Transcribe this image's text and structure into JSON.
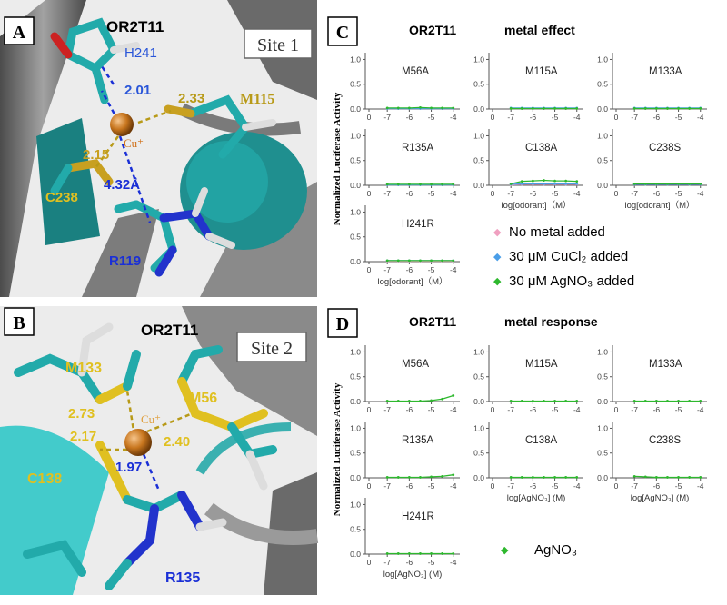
{
  "panels": {
    "A": {
      "letter": "A",
      "protein": "OR2T11",
      "site": "Site 1",
      "labels": {
        "h241": "H241",
        "m115": "M115",
        "c238": "C238",
        "r119": "R119",
        "cu": "Cu⁺"
      },
      "distances": {
        "h241": "2.01",
        "m115": "2.33",
        "c238": "2.15",
        "r119": "4.32Å"
      }
    },
    "B": {
      "letter": "B",
      "protein": "OR2T11",
      "site": "Site 2",
      "labels": {
        "m133": "M133",
        "m56": "M56",
        "c138": "C138",
        "r135": "R135",
        "cu": "Cu⁺"
      },
      "distances": {
        "m133": "2.73",
        "c138": "2.17",
        "m56": "2.40",
        "r135": "1.97"
      }
    },
    "C": {
      "letter": "C",
      "protein": "OR2T11",
      "subtitle": "metal effect",
      "ylabel": "Normalized Luciferase Activity",
      "xlabel": "log[odorant]（M）",
      "legend": [
        "No metal added",
        "30 μM CuCl₂  added",
        "30 μM AgNO₃  added"
      ]
    },
    "D": {
      "letter": "D",
      "protein": "OR2T11",
      "subtitle": "metal response",
      "ylabel": "Normalized Luciferase Activity",
      "xlabel": "log[AgNO₃] (M)",
      "legend": [
        "AgNO₃"
      ]
    }
  },
  "colors": {
    "none": "#f0a0c0",
    "cu": "#4a9ee8",
    "ag": "#2eb82e",
    "axis": "#555555",
    "teal": "#1f9e9e",
    "grey": "#7a7a7a",
    "gold": "#b89a18",
    "blue": "#1a2fd6"
  },
  "chart_data": [
    {
      "type": "line",
      "title": "OR2T11 metal effect",
      "ylabel": "Normalized Luciferase Activity",
      "xlabel": "log[odorant]（M）",
      "xticks": [
        "0",
        "-7",
        "-6",
        "-5",
        "-4"
      ],
      "yticks": [
        "0.0",
        "0.5",
        "1.0"
      ],
      "ylim": [
        0,
        1.1
      ],
      "xlim": [
        -8,
        -3.7
      ],
      "legend": [
        "No metal added",
        "30 μM CuCl₂  added",
        "30 μM AgNO₃  added"
      ],
      "subplots": [
        {
          "name": "M56A",
          "series": [
            {
              "name": "No metal added",
              "x": [
                -7,
                -6.5,
                -6,
                -5.5,
                -5,
                -4.5,
                -4
              ],
              "values": [
                0.01,
                0.01,
                0.01,
                0.01,
                0.01,
                0.01,
                0.01
              ]
            },
            {
              "name": "30 μM CuCl₂  added",
              "x": [
                -7,
                -6.5,
                -6,
                -5.5,
                -5,
                -4.5,
                -4
              ],
              "values": [
                0.01,
                0.01,
                0.01,
                0.01,
                0.01,
                0.01,
                0.01
              ]
            },
            {
              "name": "30 μM AgNO₃  added",
              "x": [
                -7,
                -6.5,
                -6,
                -5.5,
                -5,
                -4.5,
                -4
              ],
              "values": [
                0.02,
                0.02,
                0.02,
                0.03,
                0.02,
                0.02,
                0.02
              ]
            }
          ]
        },
        {
          "name": "M115A",
          "series": [
            {
              "name": "No metal added",
              "x": [
                -7,
                -6.5,
                -6,
                -5.5,
                -5,
                -4.5,
                -4
              ],
              "values": [
                0.01,
                0.01,
                0.01,
                0.01,
                0.01,
                0.01,
                0.01
              ]
            },
            {
              "name": "30 μM CuCl₂  added",
              "x": [
                -7,
                -6.5,
                -6,
                -5.5,
                -5,
                -4.5,
                -4
              ],
              "values": [
                0.02,
                0.02,
                0.02,
                0.02,
                0.02,
                0.02,
                0.02
              ]
            },
            {
              "name": "30 μM AgNO₃  added",
              "x": [
                -7,
                -6.5,
                -6,
                -5.5,
                -5,
                -4.5,
                -4
              ],
              "values": [
                0.01,
                0.01,
                0.01,
                0.01,
                0.01,
                0.01,
                0.01
              ]
            }
          ]
        },
        {
          "name": "M133A",
          "series": [
            {
              "name": "No metal added",
              "x": [
                -7,
                -6.5,
                -6,
                -5.5,
                -5,
                -4.5,
                -4
              ],
              "values": [
                0.01,
                0.01,
                0.01,
                0.01,
                0.01,
                0.01,
                0.01
              ]
            },
            {
              "name": "30 μM CuCl₂  added",
              "x": [
                -7,
                -6.5,
                -6,
                -5.5,
                -5,
                -4.5,
                -4
              ],
              "values": [
                0.02,
                0.02,
                0.02,
                0.02,
                0.02,
                0.02,
                0.02
              ]
            },
            {
              "name": "30 μM AgNO₃  added",
              "x": [
                -7,
                -6.5,
                -6,
                -5.5,
                -5,
                -4.5,
                -4
              ],
              "values": [
                0.01,
                0.01,
                0.01,
                0.01,
                0.01,
                0.01,
                0.01
              ]
            }
          ]
        },
        {
          "name": "R135A",
          "series": [
            {
              "name": "No metal added",
              "x": [
                -7,
                -6.5,
                -6,
                -5.5,
                -5,
                -4.5,
                -4
              ],
              "values": [
                0.01,
                0.01,
                0.01,
                0.01,
                0.01,
                0.01,
                0.01
              ]
            },
            {
              "name": "30 μM CuCl₂  added",
              "x": [
                -7,
                -6.5,
                -6,
                -5.5,
                -5,
                -4.5,
                -4
              ],
              "values": [
                0.01,
                0.01,
                0.01,
                0.01,
                0.01,
                0.01,
                0.01
              ]
            },
            {
              "name": "30 μM AgNO₃  added",
              "x": [
                -7,
                -6.5,
                -6,
                -5.5,
                -5,
                -4.5,
                -4
              ],
              "values": [
                0.02,
                0.02,
                0.02,
                0.02,
                0.02,
                0.02,
                0.02
              ]
            }
          ]
        },
        {
          "name": "C138A",
          "series": [
            {
              "name": "No metal added",
              "x": [
                -7,
                -6.5,
                -6,
                -5.5,
                -5,
                -4.5,
                -4
              ],
              "values": [
                0.01,
                0.02,
                0.02,
                0.02,
                0.02,
                0.02,
                0.02
              ]
            },
            {
              "name": "30 μM CuCl₂  added",
              "x": [
                -7,
                -6.5,
                -6,
                -5.5,
                -5,
                -4.5,
                -4
              ],
              "values": [
                0.02,
                0.03,
                0.03,
                0.03,
                0.03,
                0.03,
                0.03
              ]
            },
            {
              "name": "30 μM AgNO₃  added",
              "x": [
                -7,
                -6.5,
                -6,
                -5.5,
                -5,
                -4.5,
                -4
              ],
              "values": [
                0.03,
                0.08,
                0.09,
                0.1,
                0.09,
                0.09,
                0.08
              ]
            }
          ]
        },
        {
          "name": "C238S",
          "series": [
            {
              "name": "No metal added",
              "x": [
                -7,
                -6.5,
                -6,
                -5.5,
                -5,
                -4.5,
                -4
              ],
              "values": [
                0.02,
                0.02,
                0.02,
                0.03,
                0.02,
                0.02,
                0.02
              ]
            },
            {
              "name": "30 μM CuCl₂  added",
              "x": [
                -7,
                -6.5,
                -6,
                -5.5,
                -5,
                -4.5,
                -4
              ],
              "values": [
                0.02,
                0.02,
                0.02,
                0.02,
                0.02,
                0.02,
                0.02
              ]
            },
            {
              "name": "30 μM AgNO₃  added",
              "x": [
                -7,
                -6.5,
                -6,
                -5.5,
                -5,
                -4.5,
                -4
              ],
              "values": [
                0.03,
                0.03,
                0.03,
                0.03,
                0.03,
                0.03,
                0.03
              ]
            }
          ]
        },
        {
          "name": "H241R",
          "series": [
            {
              "name": "No metal added",
              "x": [
                -7,
                -6.5,
                -6,
                -5.5,
                -5,
                -4.5,
                -4
              ],
              "values": [
                0.01,
                0.01,
                0.01,
                0.01,
                0.01,
                0.01,
                0.01
              ]
            },
            {
              "name": "30 μM CuCl₂  added",
              "x": [
                -7,
                -6.5,
                -6,
                -5.5,
                -5,
                -4.5,
                -4
              ],
              "values": [
                0.02,
                0.02,
                0.02,
                0.02,
                0.02,
                0.02,
                0.02
              ]
            },
            {
              "name": "30 μM AgNO₃  added",
              "x": [
                -7,
                -6.5,
                -6,
                -5.5,
                -5,
                -4.5,
                -4
              ],
              "values": [
                0.02,
                0.02,
                0.02,
                0.02,
                0.02,
                0.02,
                0.02
              ]
            }
          ]
        }
      ]
    },
    {
      "type": "line",
      "title": "OR2T11 metal response",
      "ylabel": "Normalized Luciferase Activity",
      "xlabel": "log[AgNO₃] (M)",
      "xticks": [
        "0",
        "-7",
        "-6",
        "-5",
        "-4"
      ],
      "yticks": [
        "0.0",
        "0.5",
        "1.0"
      ],
      "ylim": [
        0,
        1.1
      ],
      "xlim": [
        -8,
        -3.7
      ],
      "legend": [
        "AgNO₃"
      ],
      "subplots": [
        {
          "name": "M56A",
          "series": [
            {
              "name": "AgNO₃",
              "x": [
                -7,
                -6.5,
                -6,
                -5.5,
                -5,
                -4.5,
                -4
              ],
              "values": [
                0.01,
                0.01,
                0.01,
                0.01,
                0.02,
                0.05,
                0.12
              ]
            }
          ]
        },
        {
          "name": "M115A",
          "series": [
            {
              "name": "AgNO₃",
              "x": [
                -7,
                -6.5,
                -6,
                -5.5,
                -5,
                -4.5,
                -4
              ],
              "values": [
                0.01,
                0.01,
                0.01,
                0.01,
                0.01,
                0.01,
                0.01
              ]
            }
          ]
        },
        {
          "name": "M133A",
          "series": [
            {
              "name": "AgNO₃",
              "x": [
                -7,
                -6.5,
                -6,
                -5.5,
                -5,
                -4.5,
                -4
              ],
              "values": [
                0.01,
                0.01,
                0.01,
                0.01,
                0.01,
                0.01,
                0.01
              ]
            }
          ]
        },
        {
          "name": "R135A",
          "series": [
            {
              "name": "AgNO₃",
              "x": [
                -7,
                -6.5,
                -6,
                -5.5,
                -5,
                -4.5,
                -4
              ],
              "values": [
                0.01,
                0.01,
                0.01,
                0.01,
                0.02,
                0.03,
                0.06
              ]
            }
          ]
        },
        {
          "name": "C138A",
          "series": [
            {
              "name": "AgNO₃",
              "x": [
                -7,
                -6.5,
                -6,
                -5.5,
                -5,
                -4.5,
                -4
              ],
              "values": [
                0.01,
                0.01,
                0.01,
                0.01,
                0.01,
                0.01,
                0.01
              ]
            }
          ]
        },
        {
          "name": "C238S",
          "series": [
            {
              "name": "AgNO₃",
              "x": [
                -7,
                -6.5,
                -6,
                -5.5,
                -5,
                -4.5,
                -4
              ],
              "values": [
                0.03,
                0.02,
                0.01,
                0.01,
                0.01,
                0.01,
                0.01
              ]
            }
          ]
        },
        {
          "name": "H241R",
          "series": [
            {
              "name": "AgNO₃",
              "x": [
                -7,
                -6.5,
                -6,
                -5.5,
                -5,
                -4.5,
                -4
              ],
              "values": [
                0.01,
                0.01,
                0.01,
                0.01,
                0.01,
                0.01,
                0.01
              ]
            }
          ]
        }
      ]
    }
  ]
}
